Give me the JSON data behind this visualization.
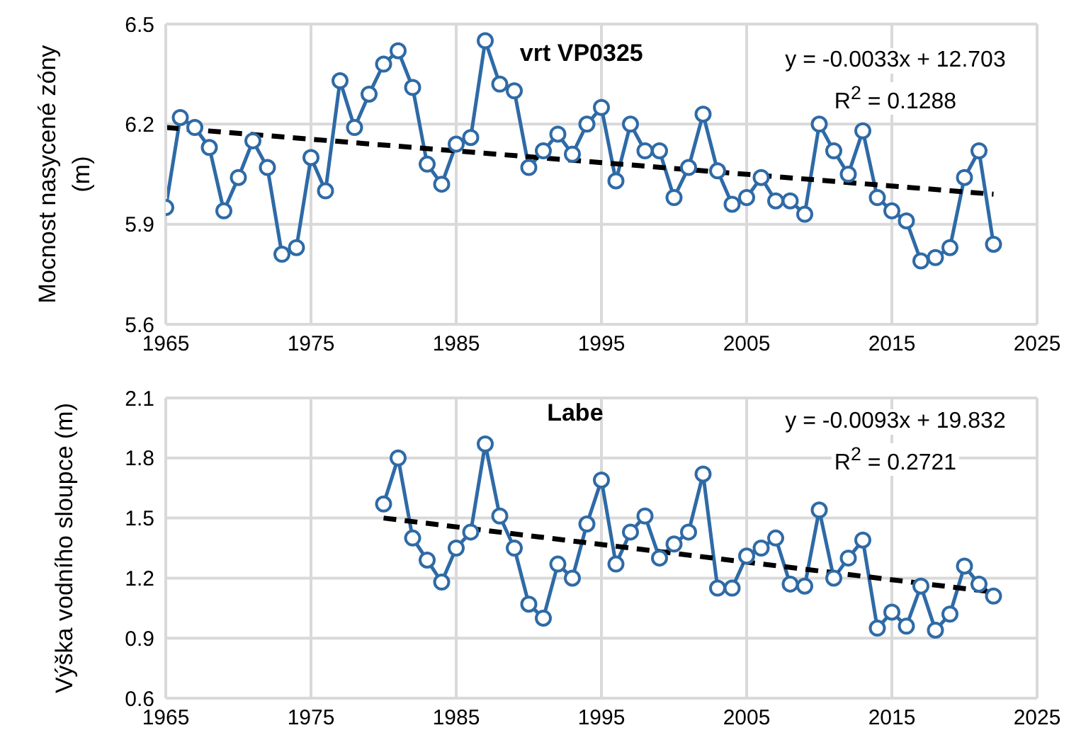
{
  "chart_data": [
    {
      "type": "line",
      "title": "vrt VP0325",
      "ylabel": "Mocnost nasycené zóny (m)",
      "annotations": [
        "y = -0.0033x + 12.703",
        "R$^{2}$ = 0.1288"
      ],
      "xlim": [
        1965,
        2025
      ],
      "xticks": [
        1965,
        1975,
        1985,
        1995,
        2005,
        2015,
        2025
      ],
      "ylim": [
        5.6,
        6.5
      ],
      "yticks": [
        5.6,
        5.9,
        6.2,
        6.5
      ],
      "grid": true,
      "series": [
        {
          "color": "#2e6aa6",
          "marker": "circle",
          "line_style": "solid",
          "x": [
            1965,
            1966,
            1967,
            1968,
            1969,
            1970,
            1971,
            1972,
            1973,
            1974,
            1975,
            1976,
            1977,
            1978,
            1979,
            1980,
            1981,
            1982,
            1983,
            1984,
            1985,
            1986,
            1987,
            1988,
            1989,
            1990,
            1991,
            1992,
            1993,
            1994,
            1995,
            1996,
            1997,
            1998,
            1999,
            2000,
            2001,
            2002,
            2003,
            2004,
            2005,
            2006,
            2007,
            2008,
            2009,
            2010,
            2011,
            2012,
            2013,
            2014,
            2015,
            2016,
            2017,
            2018,
            2019,
            2020,
            2021,
            2022
          ],
          "values": [
            5.95,
            6.22,
            6.19,
            6.13,
            5.94,
            6.04,
            6.15,
            6.07,
            5.81,
            5.83,
            6.1,
            6.0,
            6.33,
            6.19,
            6.29,
            6.38,
            6.42,
            6.31,
            6.08,
            6.02,
            6.14,
            6.16,
            6.45,
            6.32,
            6.3,
            6.07,
            6.12,
            6.17,
            6.11,
            6.2,
            6.25,
            6.03,
            6.2,
            6.12,
            6.12,
            5.98,
            6.07,
            6.23,
            6.06,
            5.96,
            5.98,
            6.04,
            5.97,
            5.97,
            5.93,
            6.2,
            6.12,
            6.05,
            6.18,
            5.98,
            5.94,
            5.91,
            5.79,
            5.8,
            5.83,
            6.04,
            6.12,
            5.84
          ]
        },
        {
          "type": "line",
          "color": "#000000",
          "marker": "none",
          "line_style": "dashed",
          "x": [
            1965,
            2022
          ],
          "values": [
            6.19,
            5.99
          ]
        }
      ]
    },
    {
      "type": "line",
      "title": "Labe",
      "ylabel": "Výška vodního sloupce (m)",
      "annotations": [
        "y = -0.0093x + 19.832",
        "R$^{2}$ = 0.2721"
      ],
      "xlim": [
        1965,
        2025
      ],
      "xticks": [
        1965,
        1975,
        1985,
        1995,
        2005,
        2015,
        2025
      ],
      "ylim": [
        0.6,
        2.1
      ],
      "yticks": [
        0.6,
        0.9,
        1.2,
        1.5,
        1.8,
        2.1
      ],
      "grid": true,
      "series": [
        {
          "color": "#2e6aa6",
          "marker": "circle",
          "line_style": "solid",
          "x": [
            1980,
            1981,
            1982,
            1983,
            1984,
            1985,
            1986,
            1987,
            1988,
            1989,
            1990,
            1991,
            1992,
            1993,
            1994,
            1995,
            1996,
            1997,
            1998,
            1999,
            2000,
            2001,
            2002,
            2003,
            2004,
            2005,
            2006,
            2007,
            2008,
            2009,
            2010,
            2011,
            2012,
            2013,
            2014,
            2015,
            2016,
            2017,
            2018,
            2019,
            2020,
            2021,
            2022
          ],
          "values": [
            1.57,
            1.8,
            1.4,
            1.29,
            1.18,
            1.35,
            1.43,
            1.87,
            1.51,
            1.35,
            1.07,
            1.0,
            1.27,
            1.2,
            1.47,
            1.69,
            1.27,
            1.43,
            1.51,
            1.3,
            1.37,
            1.43,
            1.72,
            1.15,
            1.15,
            1.31,
            1.35,
            1.4,
            1.17,
            1.16,
            1.54,
            1.2,
            1.3,
            1.39,
            0.95,
            1.03,
            0.96,
            1.16,
            0.94,
            1.02,
            1.26,
            1.17,
            1.11
          ]
        },
        {
          "type": "line",
          "color": "#000000",
          "marker": "none",
          "line_style": "dashed",
          "x": [
            1980,
            2022
          ],
          "values": [
            1.5,
            1.13
          ]
        }
      ]
    }
  ]
}
